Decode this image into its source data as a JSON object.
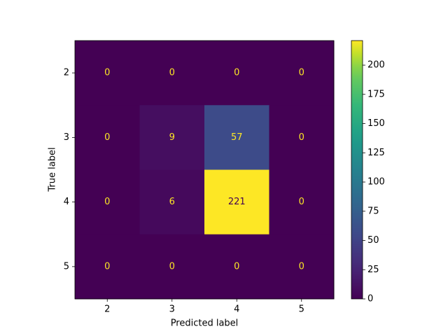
{
  "chart_data": {
    "type": "heatmap",
    "x_label": "Predicted label",
    "y_label": "True label",
    "x_categories": [
      "2",
      "3",
      "4",
      "5"
    ],
    "y_categories": [
      "2",
      "3",
      "4",
      "5"
    ],
    "values": [
      [
        0,
        0,
        0,
        0
      ],
      [
        0,
        9,
        57,
        0
      ],
      [
        0,
        6,
        221,
        0
      ],
      [
        0,
        0,
        0,
        0
      ]
    ],
    "colormap": "viridis",
    "colorbar": {
      "lim": [
        0,
        221
      ],
      "ticks": [
        0,
        25,
        50,
        75,
        100,
        125,
        150,
        175,
        200
      ]
    }
  }
}
